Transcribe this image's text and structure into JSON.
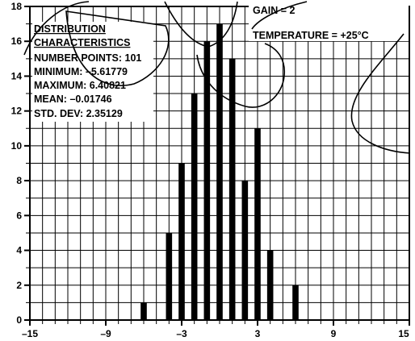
{
  "chart_data": {
    "type": "bar",
    "title": "",
    "xlabel": "",
    "ylabel": "",
    "x": [
      -6,
      -4,
      -3,
      -2,
      -1,
      0,
      1,
      2,
      3,
      4,
      6
    ],
    "values": [
      1,
      5,
      9,
      13,
      16,
      17,
      15,
      8,
      11,
      4,
      2
    ],
    "xlim": [
      -15,
      15
    ],
    "ylim": [
      0,
      18
    ],
    "xticks": [
      -15,
      -9,
      -3,
      3,
      9,
      15
    ],
    "xtick_labels": [
      "–15",
      "–9",
      "–3",
      "3",
      "9",
      "15"
    ],
    "yticks": [
      0,
      2,
      4,
      6,
      8,
      10,
      12,
      14,
      16,
      18
    ],
    "ytick_labels": [
      "0",
      "2",
      "4",
      "6",
      "8",
      "10",
      "12",
      "14",
      "16",
      "18"
    ],
    "grid": true,
    "bar_color": "#000000",
    "grid_color": "#000000",
    "annotations": {
      "stats_heading_line1": "DISTRIBUTION",
      "stats_heading_line2": "CHARACTERISTICS",
      "number_points": "NUMBER POINTS: 101",
      "minimum": "MINIMUM: –5.61779",
      "maximum": "MAXIMUM: 6.40821",
      "mean": "MEAN: –0.01746",
      "std_dev": "STD. DEV: 2.35129",
      "gain": "GAIN = 2",
      "temperature": "TEMPERATURE = +25°C"
    }
  }
}
